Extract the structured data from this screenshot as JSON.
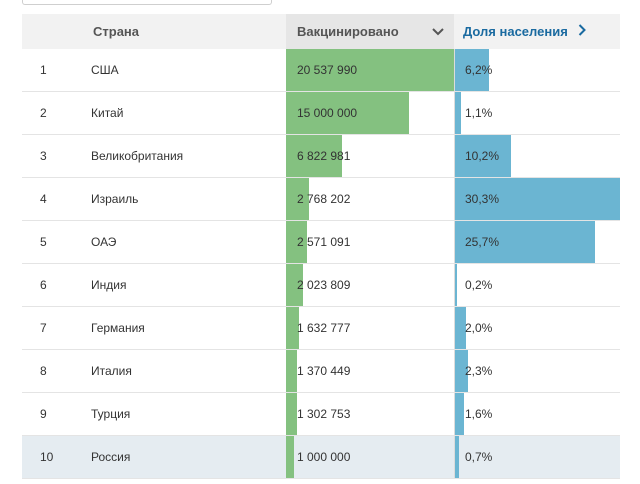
{
  "header": {
    "country": "Страна",
    "vaccinated": "Вакцинировано",
    "vaccinated_sort_icon": "chevron-down-icon",
    "share": "Доля населения",
    "share_nav_icon": "chevron-right-icon"
  },
  "colors": {
    "vaccinated_bar": "#84c180",
    "share_bar": "#6bb5d2",
    "share_header_text": "#1a6aa0",
    "highlight_row": "#e5ecf1"
  },
  "rows": [
    {
      "rank": "1",
      "country": "США",
      "vaccinated": "20 537 990",
      "vaccinated_value": 20537990,
      "share": "6,2%",
      "share_value": 6.2
    },
    {
      "rank": "2",
      "country": "Китай",
      "vaccinated": "15 000 000",
      "vaccinated_value": 15000000,
      "share": "1,1%",
      "share_value": 1.1
    },
    {
      "rank": "3",
      "country": "Великобритания",
      "vaccinated": "6 822 981",
      "vaccinated_value": 6822981,
      "share": "10,2%",
      "share_value": 10.2
    },
    {
      "rank": "4",
      "country": "Израиль",
      "vaccinated": "2 768 202",
      "vaccinated_value": 2768202,
      "share": "30,3%",
      "share_value": 30.3
    },
    {
      "rank": "5",
      "country": "ОАЭ",
      "vaccinated": "2 571 091",
      "vaccinated_value": 2571091,
      "share": "25,7%",
      "share_value": 25.7
    },
    {
      "rank": "6",
      "country": "Индия",
      "vaccinated": "2 023 809",
      "vaccinated_value": 2023809,
      "share": "0,2%",
      "share_value": 0.2
    },
    {
      "rank": "7",
      "country": "Германия",
      "vaccinated": "1 632 777",
      "vaccinated_value": 1632777,
      "share": "2,0%",
      "share_value": 2.0
    },
    {
      "rank": "8",
      "country": "Италия",
      "vaccinated": "1 370 449",
      "vaccinated_value": 1370449,
      "share": "2,3%",
      "share_value": 2.3
    },
    {
      "rank": "9",
      "country": "Турция",
      "vaccinated": "1 302 753",
      "vaccinated_value": 1302753,
      "share": "1,6%",
      "share_value": 1.6
    },
    {
      "rank": "10",
      "country": "Россия",
      "vaccinated": "1 000 000",
      "vaccinated_value": 1000000,
      "share": "0,7%",
      "share_value": 0.7,
      "highlighted": true
    }
  ]
}
